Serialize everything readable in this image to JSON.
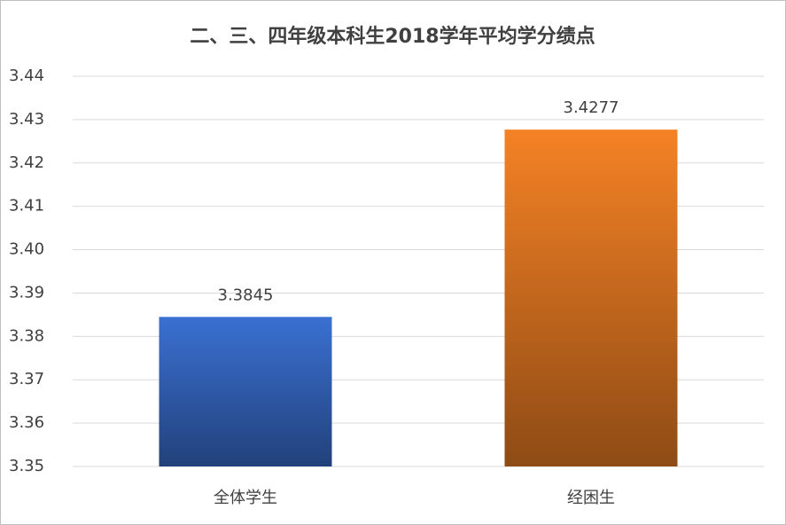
{
  "chart_data": {
    "type": "bar",
    "title": "二、三、四年级本科生2018学年平均学分绩点",
    "categories": [
      "全体学生",
      "经困生"
    ],
    "values": [
      3.3845,
      3.4277
    ],
    "colors": [
      "#3a70d2",
      "#f58225"
    ],
    "ylim": [
      3.35,
      3.44
    ],
    "yticks": [
      3.35,
      3.36,
      3.37,
      3.38,
      3.39,
      {
        "value": 3.4,
        "label": "3.40"
      },
      3.41,
      3.42,
      3.43,
      3.44
    ],
    "grid": true
  }
}
